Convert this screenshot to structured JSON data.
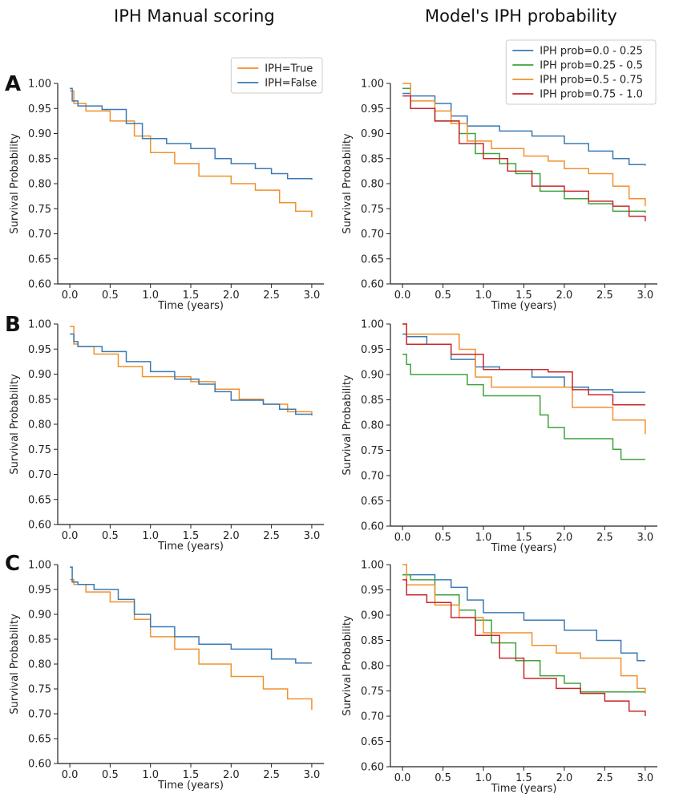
{
  "column_titles": {
    "left": "IPH Manual scoring",
    "right": "Model's IPH probability"
  },
  "row_labels": [
    "A",
    "B",
    "C"
  ],
  "colors": {
    "blue": "#3a7ab4",
    "orange": "#f0912c",
    "green": "#3ea33c",
    "red": "#c8282c",
    "axis": "#222222"
  },
  "chart_data": [
    {
      "id": "A-left",
      "type": "line",
      "step": true,
      "xlabel": "Time (years)",
      "ylabel": "Survival Probability",
      "xlim": [
        0,
        3
      ],
      "ylim": [
        0.6,
        1.0
      ],
      "xticks": [
        "0.0",
        "0.5",
        "1.0",
        "1.5",
        "2.0",
        "2.5",
        "3.0"
      ],
      "yticks": [
        "0.60",
        "0.65",
        "0.70",
        "0.75",
        "0.80",
        "0.85",
        "0.90",
        "0.95",
        "1.00"
      ],
      "legend": {
        "position": "top-right",
        "entries": [
          "IPH=True",
          "IPH=False"
        ]
      },
      "series": [
        {
          "name": "IPH=True",
          "color": "orange",
          "x": [
            0,
            0.05,
            0.2,
            0.5,
            0.8,
            1.0,
            1.3,
            1.6,
            2.0,
            2.3,
            2.6,
            2.8,
            3.0
          ],
          "y": [
            0.985,
            0.96,
            0.945,
            0.925,
            0.895,
            0.862,
            0.84,
            0.815,
            0.8,
            0.787,
            0.762,
            0.745,
            0.733
          ]
        },
        {
          "name": "IPH=False",
          "color": "blue",
          "x": [
            0,
            0.03,
            0.1,
            0.4,
            0.7,
            0.9,
            1.2,
            1.5,
            1.8,
            2.0,
            2.3,
            2.5,
            2.7,
            3.0
          ],
          "y": [
            0.99,
            0.965,
            0.955,
            0.948,
            0.92,
            0.89,
            0.88,
            0.87,
            0.85,
            0.84,
            0.83,
            0.82,
            0.81,
            0.808
          ]
        }
      ]
    },
    {
      "id": "A-right",
      "type": "line",
      "step": true,
      "xlabel": "Time (years)",
      "ylabel": "Survival Probability",
      "xlim": [
        0,
        3
      ],
      "ylim": [
        0.6,
        1.0
      ],
      "xticks": [
        "0.0",
        "0.5",
        "1.0",
        "1.5",
        "2.0",
        "2.5",
        "3.0"
      ],
      "yticks": [
        "0.60",
        "0.65",
        "0.70",
        "0.75",
        "0.80",
        "0.85",
        "0.90",
        "0.95",
        "1.00"
      ],
      "legend": {
        "position": "top-right",
        "entries": [
          "IPH prob=0.0 - 0.25",
          "IPH prob=0.25 - 0.5",
          "IPH prob=0.5 - 0.75",
          "IPH prob=0.75 - 1.0"
        ]
      },
      "series": [
        {
          "name": "IPH prob=0.0 - 0.25",
          "color": "blue",
          "x": [
            0,
            0.1,
            0.4,
            0.6,
            0.8,
            1.2,
            1.6,
            2.0,
            2.3,
            2.6,
            2.8,
            3.0
          ],
          "y": [
            0.98,
            0.975,
            0.96,
            0.935,
            0.915,
            0.905,
            0.895,
            0.88,
            0.865,
            0.85,
            0.838,
            0.836
          ]
        },
        {
          "name": "IPH prob=0.25 - 0.5",
          "color": "green",
          "x": [
            0,
            0.1,
            0.4,
            0.7,
            0.9,
            1.2,
            1.4,
            1.7,
            2.0,
            2.3,
            2.6,
            3.0
          ],
          "y": [
            0.99,
            0.95,
            0.925,
            0.9,
            0.86,
            0.84,
            0.82,
            0.785,
            0.77,
            0.76,
            0.745,
            0.742
          ]
        },
        {
          "name": "IPH prob=0.5 - 0.75",
          "color": "orange",
          "x": [
            0,
            0.1,
            0.4,
            0.6,
            0.8,
            1.1,
            1.5,
            1.8,
            2.0,
            2.3,
            2.6,
            2.8,
            3.0
          ],
          "y": [
            1.0,
            0.965,
            0.945,
            0.92,
            0.885,
            0.87,
            0.855,
            0.845,
            0.83,
            0.82,
            0.795,
            0.77,
            0.755
          ]
        },
        {
          "name": "IPH prob=0.75 - 1.0",
          "color": "red",
          "x": [
            0,
            0.1,
            0.4,
            0.7,
            1.0,
            1.3,
            1.6,
            2.0,
            2.3,
            2.6,
            2.8,
            3.0
          ],
          "y": [
            0.975,
            0.95,
            0.925,
            0.88,
            0.85,
            0.825,
            0.795,
            0.785,
            0.765,
            0.755,
            0.735,
            0.725
          ]
        }
      ]
    },
    {
      "id": "B-left",
      "type": "line",
      "step": true,
      "xlabel": "Time (years)",
      "ylabel": "Survival Probability",
      "xlim": [
        0,
        3
      ],
      "ylim": [
        0.6,
        1.0
      ],
      "xticks": [
        "0.0",
        "0.5",
        "1.0",
        "1.5",
        "2.0",
        "2.5",
        "3.0"
      ],
      "yticks": [
        "0.60",
        "0.65",
        "0.70",
        "0.75",
        "0.80",
        "0.85",
        "0.90",
        "0.95",
        "1.00"
      ],
      "series": [
        {
          "name": "IPH=True",
          "color": "orange",
          "x": [
            0,
            0.05,
            0.1,
            0.3,
            0.6,
            0.9,
            1.2,
            1.5,
            1.8,
            2.1,
            2.4,
            2.7,
            3.0
          ],
          "y": [
            0.995,
            0.96,
            0.955,
            0.94,
            0.915,
            0.895,
            0.895,
            0.885,
            0.87,
            0.85,
            0.84,
            0.825,
            0.818
          ]
        },
        {
          "name": "IPH=False",
          "color": "blue",
          "x": [
            0,
            0.05,
            0.1,
            0.4,
            0.7,
            1.0,
            1.3,
            1.6,
            1.8,
            2.0,
            2.4,
            2.6,
            2.8,
            3.0
          ],
          "y": [
            0.98,
            0.965,
            0.955,
            0.945,
            0.925,
            0.905,
            0.89,
            0.88,
            0.865,
            0.848,
            0.84,
            0.83,
            0.82,
            0.818
          ]
        }
      ]
    },
    {
      "id": "B-right",
      "type": "line",
      "step": true,
      "xlabel": "Time (years)",
      "ylabel": "Survival Probability",
      "xlim": [
        0,
        3
      ],
      "ylim": [
        0.6,
        1.0
      ],
      "xticks": [
        "0.0",
        "0.5",
        "1.0",
        "1.5",
        "2.0",
        "2.5",
        "3.0"
      ],
      "yticks": [
        "0.60",
        "0.65",
        "0.70",
        "0.75",
        "0.80",
        "0.85",
        "0.90",
        "0.95",
        "1.00"
      ],
      "series": [
        {
          "name": "IPH prob=0.0 - 0.25",
          "color": "blue",
          "x": [
            0,
            0.05,
            0.3,
            0.6,
            0.9,
            1.2,
            1.6,
            2.0,
            2.3,
            2.6,
            3.0
          ],
          "y": [
            0.98,
            0.975,
            0.96,
            0.93,
            0.915,
            0.91,
            0.895,
            0.875,
            0.87,
            0.865,
            0.865
          ]
        },
        {
          "name": "IPH prob=0.25 - 0.5",
          "color": "green",
          "x": [
            0,
            0.05,
            0.1,
            0.5,
            0.8,
            1.0,
            1.6,
            1.7,
            1.8,
            2.0,
            2.6,
            2.7,
            3.0
          ],
          "y": [
            0.94,
            0.92,
            0.9,
            0.9,
            0.88,
            0.858,
            0.858,
            0.82,
            0.795,
            0.773,
            0.752,
            0.732,
            0.732
          ]
        },
        {
          "name": "IPH prob=0.5 - 0.75",
          "color": "orange",
          "x": [
            0,
            0.05,
            0.3,
            0.7,
            0.9,
            1.1,
            2.0,
            2.1,
            2.4,
            2.6,
            3.0
          ],
          "y": [
            1.0,
            0.98,
            0.98,
            0.95,
            0.895,
            0.875,
            0.875,
            0.835,
            0.835,
            0.81,
            0.782
          ]
        },
        {
          "name": "IPH prob=0.75 - 1.0",
          "color": "red",
          "x": [
            0,
            0.05,
            0.3,
            0.6,
            1.0,
            1.4,
            1.8,
            2.1,
            2.3,
            2.6,
            3.0
          ],
          "y": [
            1.0,
            0.96,
            0.96,
            0.94,
            0.91,
            0.91,
            0.905,
            0.87,
            0.86,
            0.84,
            0.84
          ]
        }
      ]
    },
    {
      "id": "C-left",
      "type": "line",
      "step": true,
      "xlabel": "Time (years)",
      "ylabel": "Survival Probability",
      "xlim": [
        0,
        3
      ],
      "ylim": [
        0.6,
        1.0
      ],
      "xticks": [
        "0.0",
        "0.5",
        "1.0",
        "1.5",
        "2.0",
        "2.5",
        "3.0"
      ],
      "yticks": [
        "0.60",
        "0.65",
        "0.70",
        "0.75",
        "0.80",
        "0.85",
        "0.90",
        "0.95",
        "1.00"
      ],
      "series": [
        {
          "name": "IPH=True",
          "color": "orange",
          "x": [
            0,
            0.05,
            0.2,
            0.5,
            0.8,
            1.0,
            1.3,
            1.6,
            2.0,
            2.4,
            2.7,
            3.0
          ],
          "y": [
            0.97,
            0.96,
            0.945,
            0.925,
            0.89,
            0.855,
            0.83,
            0.8,
            0.775,
            0.75,
            0.73,
            0.708
          ]
        },
        {
          "name": "IPH=False",
          "color": "blue",
          "x": [
            0,
            0.03,
            0.1,
            0.3,
            0.6,
            0.8,
            1.0,
            1.3,
            1.6,
            2.0,
            2.5,
            2.8,
            3.0
          ],
          "y": [
            0.995,
            0.965,
            0.96,
            0.95,
            0.93,
            0.9,
            0.875,
            0.855,
            0.84,
            0.83,
            0.81,
            0.802,
            0.802
          ]
        }
      ]
    },
    {
      "id": "C-right",
      "type": "line",
      "step": true,
      "xlabel": "Time (years)",
      "ylabel": "Survival Probability",
      "xlim": [
        0,
        3
      ],
      "ylim": [
        0.6,
        1.0
      ],
      "xticks": [
        "0.0",
        "0.5",
        "1.0",
        "1.5",
        "2.0",
        "2.5",
        "3.0"
      ],
      "yticks": [
        "0.60",
        "0.65",
        "0.70",
        "0.75",
        "0.80",
        "0.85",
        "0.90",
        "0.95",
        "1.00"
      ],
      "series": [
        {
          "name": "IPH prob=0.0 - 0.25",
          "color": "blue",
          "x": [
            0,
            0.05,
            0.4,
            0.6,
            0.8,
            1.0,
            1.5,
            2.0,
            2.4,
            2.7,
            2.9,
            3.0
          ],
          "y": [
            0.98,
            0.98,
            0.97,
            0.955,
            0.93,
            0.905,
            0.89,
            0.87,
            0.85,
            0.825,
            0.81,
            0.81
          ]
        },
        {
          "name": "IPH prob=0.25 - 0.5",
          "color": "green",
          "x": [
            0,
            0.1,
            0.4,
            0.7,
            0.9,
            1.1,
            1.4,
            1.7,
            2.0,
            2.2,
            3.0
          ],
          "y": [
            0.98,
            0.97,
            0.94,
            0.91,
            0.89,
            0.845,
            0.81,
            0.78,
            0.765,
            0.748,
            0.748
          ]
        },
        {
          "name": "IPH prob=0.5 - 0.75",
          "color": "orange",
          "x": [
            0,
            0.05,
            0.4,
            0.7,
            1.0,
            1.3,
            1.6,
            1.9,
            2.2,
            2.5,
            2.7,
            2.9,
            3.0
          ],
          "y": [
            1.0,
            0.96,
            0.92,
            0.895,
            0.865,
            0.865,
            0.84,
            0.825,
            0.815,
            0.815,
            0.78,
            0.755,
            0.745
          ]
        },
        {
          "name": "IPH prob=0.75 - 1.0",
          "color": "red",
          "x": [
            0,
            0.05,
            0.3,
            0.6,
            0.9,
            1.2,
            1.5,
            1.9,
            2.2,
            2.5,
            2.8,
            3.0
          ],
          "y": [
            0.97,
            0.94,
            0.925,
            0.895,
            0.86,
            0.815,
            0.775,
            0.755,
            0.745,
            0.73,
            0.71,
            0.7
          ]
        }
      ]
    }
  ]
}
